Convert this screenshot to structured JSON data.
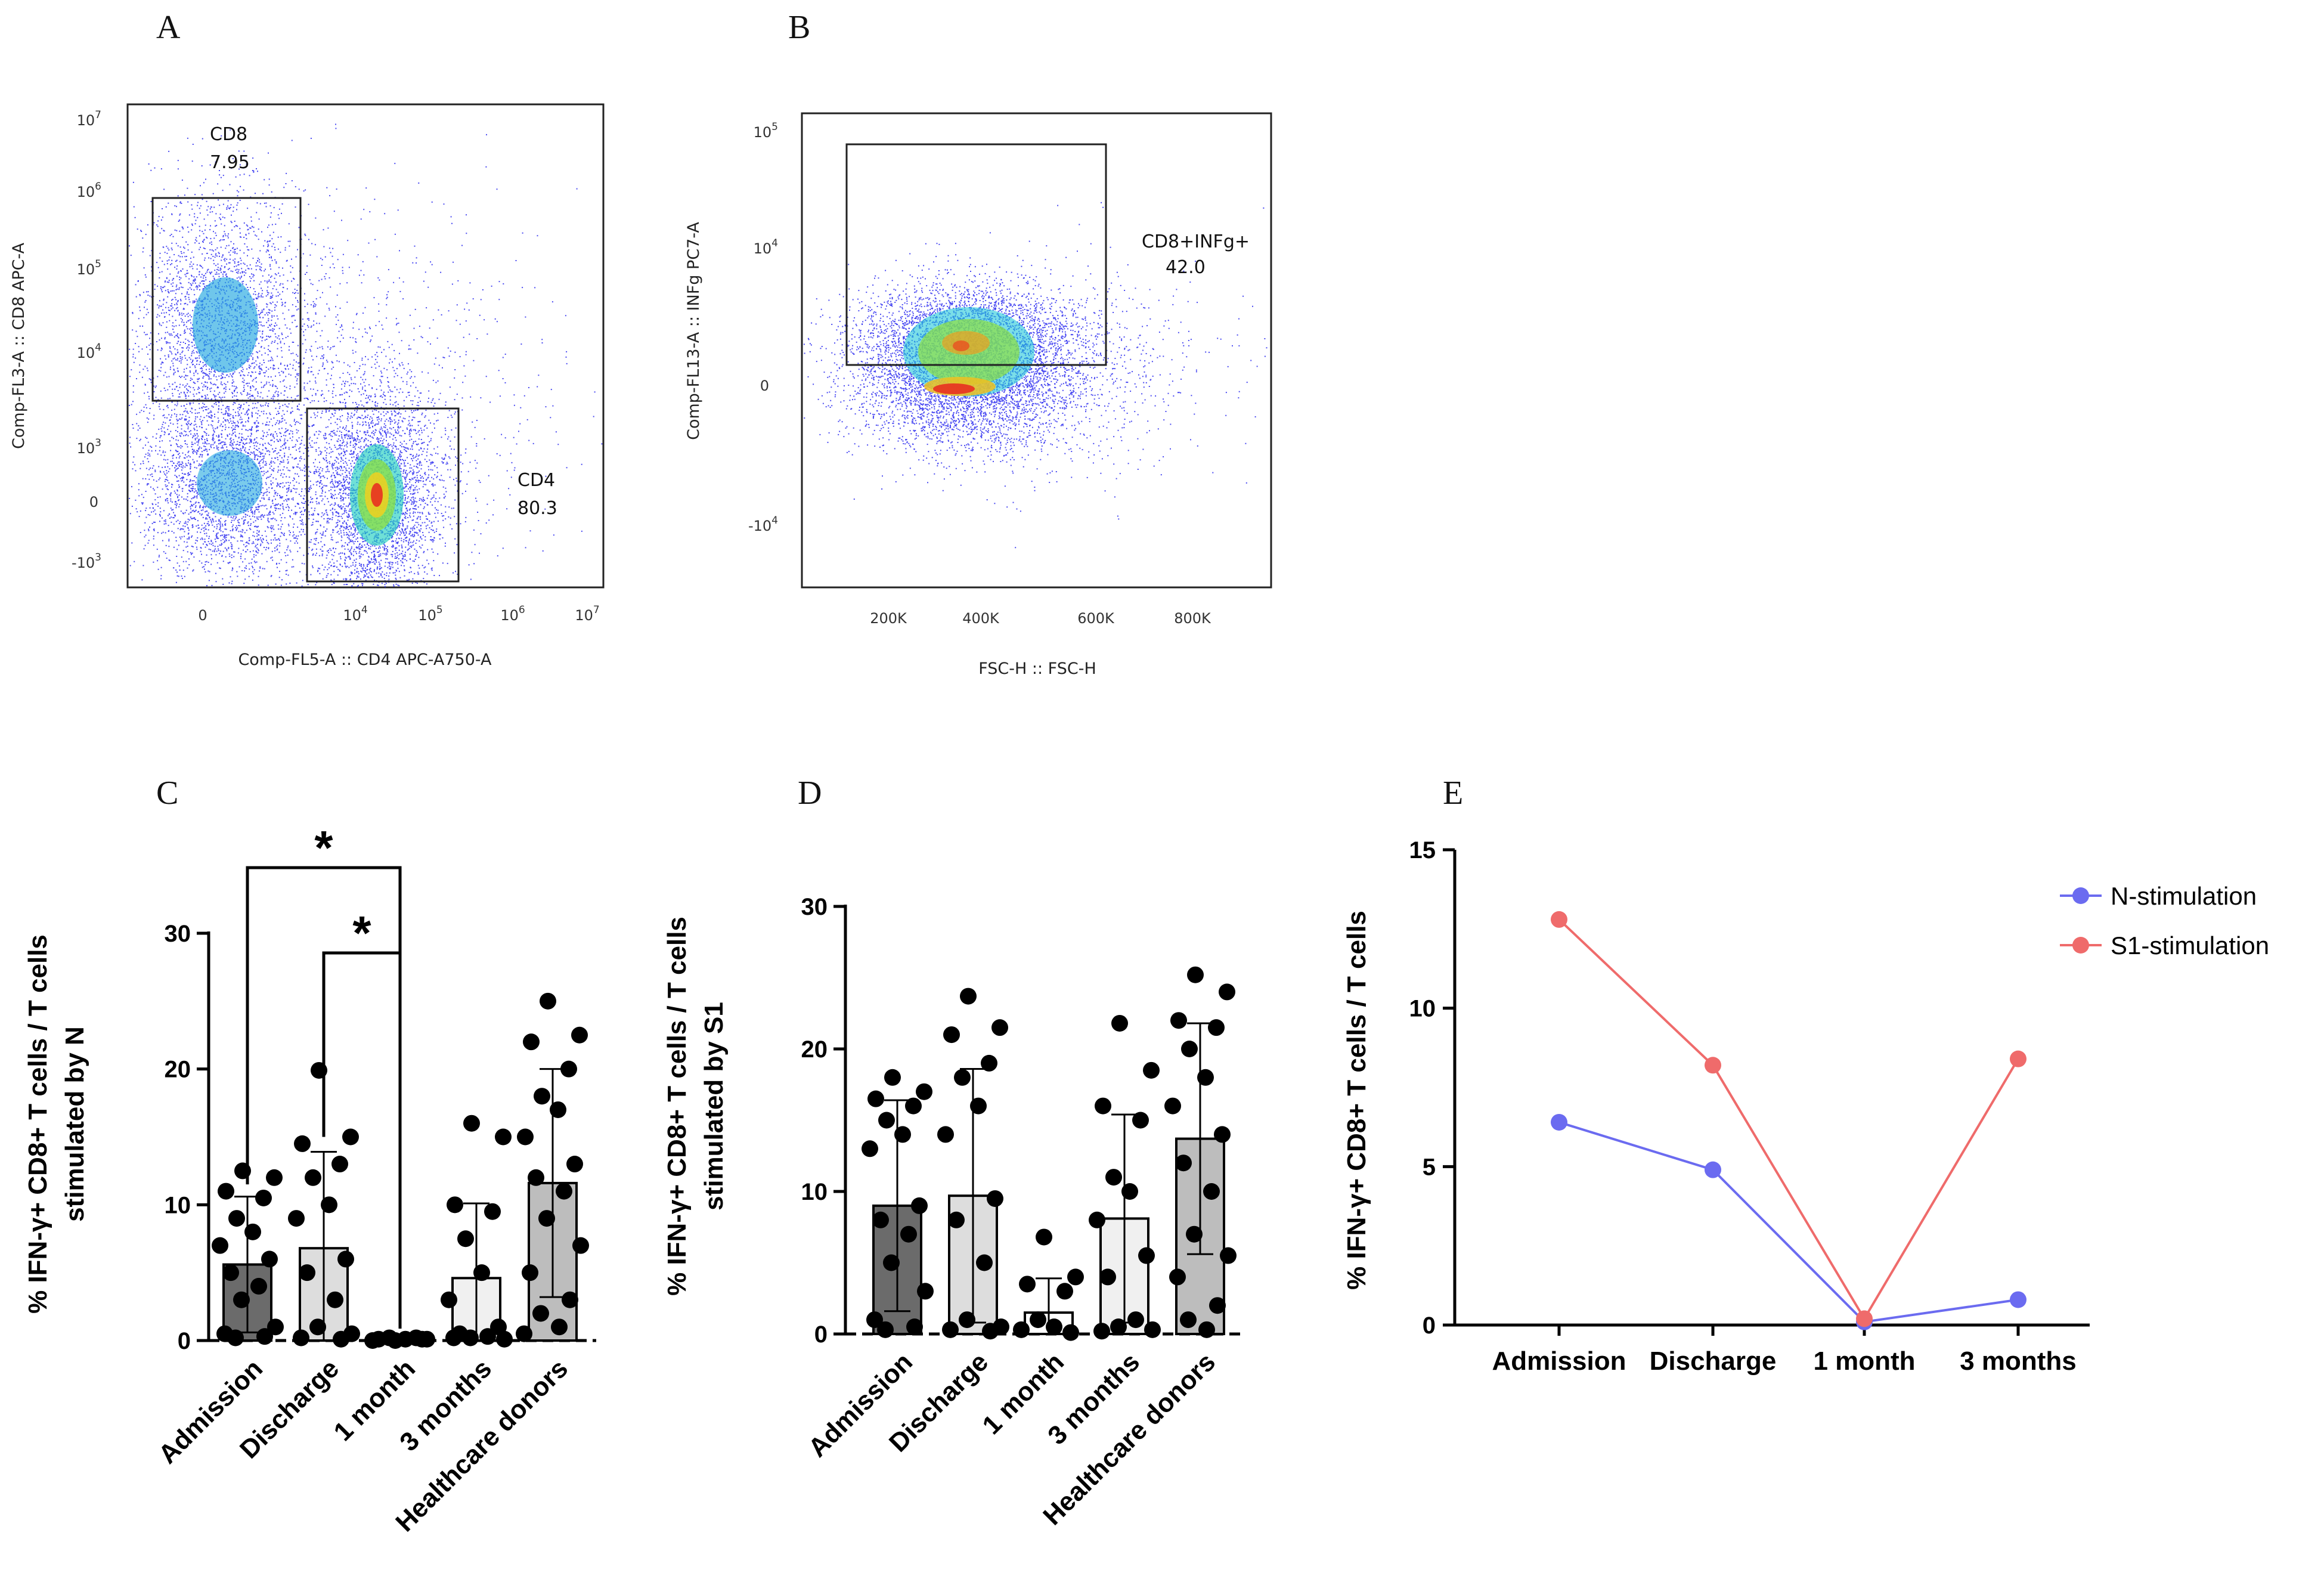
{
  "panel_labels": [
    "A",
    "B",
    "C",
    "D",
    "E"
  ],
  "chart_data": [
    {
      "panel": "A",
      "type": "scatter",
      "title": "",
      "xlabel": "Comp-FL5-A :: CD4 APC-A750-A",
      "ylabel": "Comp-FL3-A :: CD8 APC-A",
      "x_ticks": [
        "0",
        "10",
        "10",
        "10",
        "10"
      ],
      "x_tick_exps": [
        "",
        "4",
        "5",
        "6",
        "7"
      ],
      "y_ticks": [
        "-10",
        "0",
        "10",
        "10",
        "10",
        "10",
        "10"
      ],
      "y_tick_exps": [
        "3",
        "",
        "3",
        "4",
        "5",
        "6",
        "7"
      ],
      "gates": [
        {
          "name": "CD8",
          "value": "7.95"
        },
        {
          "name": "CD4",
          "value": "80.3"
        }
      ]
    },
    {
      "panel": "B",
      "type": "scatter",
      "title": "",
      "xlabel": "FSC-H :: FSC-H",
      "ylabel": "Comp-FL13-A :: INFg PC7-A",
      "x_ticks": [
        "200K",
        "400K",
        "600K",
        "800K"
      ],
      "y_ticks": [
        "-10",
        "0",
        "10",
        "10"
      ],
      "y_tick_exps": [
        "4",
        "",
        "4",
        "5"
      ],
      "gates": [
        {
          "name": "CD8+INFg+",
          "value": "42.0"
        }
      ]
    },
    {
      "panel": "C",
      "type": "bar",
      "title": "",
      "xlabel": "",
      "ylabel_line1": "% IFN-γ+ CD8+ T cells / T cells",
      "ylabel_line2": "stimulated by N",
      "categories": [
        "Admission",
        "Discharge",
        "1 month",
        "3 months",
        "Healthcare donors"
      ],
      "values": [
        5.6,
        6.8,
        0.1,
        4.6,
        11.6
      ],
      "sd": [
        5.0,
        7.1,
        0.1,
        5.5,
        8.4
      ],
      "ylim": [
        0,
        30
      ],
      "yticks": [
        0,
        10,
        20,
        30
      ],
      "significance": [
        {
          "from": 0,
          "to": 2,
          "label": "*"
        },
        {
          "from": 1,
          "to": 2,
          "label": "*"
        }
      ],
      "points": [
        [
          12.5,
          12.0,
          11.0,
          10.5,
          9.0,
          8.0,
          7.0,
          6.0,
          5.0,
          4.0,
          3.0,
          1.0,
          0.5,
          0.3,
          0.2
        ],
        [
          19.9,
          15.0,
          14.5,
          13.0,
          12.0,
          10.0,
          9.0,
          6.0,
          5.0,
          3.0,
          1.0,
          0.5,
          0.2,
          0.1
        ],
        [
          0.0,
          0.1,
          0.1,
          0.2,
          0.2,
          0.1,
          0.0,
          0.1
        ],
        [
          16.0,
          15.0,
          10.0,
          9.5,
          7.5,
          5.0,
          3.0,
          1.0,
          0.5,
          0.3,
          0.2,
          0.1,
          0.2
        ],
        [
          25.0,
          22.5,
          22.0,
          20.0,
          18.0,
          17.0,
          15.0,
          13.0,
          12.0,
          11.0,
          9.0,
          7.0,
          5.0,
          3.0,
          2.0,
          1.0,
          0.5
        ]
      ]
    },
    {
      "panel": "D",
      "type": "bar",
      "title": "",
      "xlabel": "",
      "ylabel_line1": "% IFN-γ+ CD8+ T cells / T cells",
      "ylabel_line2": "stimulated by S1",
      "categories": [
        "Admission",
        "Discharge",
        "1 month",
        "3 months",
        "Healthcare donors"
      ],
      "values": [
        9.0,
        9.7,
        1.5,
        8.1,
        13.7
      ],
      "sd": [
        7.4,
        8.9,
        2.4,
        7.3,
        8.1
      ],
      "ylim": [
        0,
        30
      ],
      "yticks": [
        0,
        10,
        20,
        30
      ],
      "points": [
        [
          18.0,
          17.0,
          16.5,
          16.0,
          15.0,
          14.0,
          13.0,
          9.0,
          8.0,
          7.0,
          5.0,
          3.0,
          1.0,
          0.5,
          0.3
        ],
        [
          23.7,
          21.5,
          21.0,
          19.0,
          18.0,
          16.0,
          14.0,
          9.5,
          8.0,
          5.0,
          1.0,
          0.5,
          0.3,
          0.2
        ],
        [
          6.8,
          4.0,
          3.5,
          3.0,
          1.0,
          0.5,
          0.3,
          0.1
        ],
        [
          21.8,
          18.5,
          16.0,
          15.0,
          11.0,
          10.0,
          8.0,
          5.5,
          4.0,
          1.0,
          0.5,
          0.3,
          0.2
        ],
        [
          25.2,
          24.0,
          22.0,
          21.5,
          20.0,
          18.0,
          16.0,
          14.0,
          12.0,
          10.0,
          7.0,
          5.5,
          4.0,
          2.0,
          1.0,
          0.3
        ]
      ]
    },
    {
      "panel": "E",
      "type": "line",
      "title": "",
      "xlabel": "",
      "ylabel": "% IFN-γ+ CD8+ T cells / T cells",
      "categories": [
        "Admission",
        "Discharge",
        "1 month",
        "3 months"
      ],
      "ylim": [
        0,
        15
      ],
      "yticks": [
        0,
        5,
        10,
        15
      ],
      "legend_position": "top-right",
      "series": [
        {
          "name": "N-stimulation",
          "values": [
            6.4,
            4.9,
            0.1,
            0.8
          ],
          "color": "#6b6bf0"
        },
        {
          "name": "S1-stimulation",
          "values": [
            12.8,
            8.2,
            0.2,
            8.4
          ],
          "color": "#ef6b6b"
        }
      ]
    }
  ]
}
